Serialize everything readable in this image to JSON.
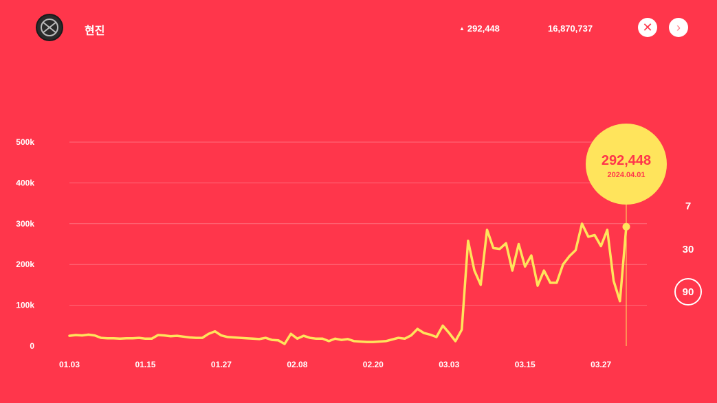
{
  "header": {
    "artist_name": "현진",
    "daily_value": "292,448",
    "total_value": "16,870,737",
    "up_icon": "triangle-up-icon",
    "close_icon": "close-icon",
    "next_icon": "chevron-right-icon"
  },
  "range_options": [
    {
      "label": "7",
      "selected": false
    },
    {
      "label": "30",
      "selected": false
    },
    {
      "label": "90",
      "selected": true
    }
  ],
  "colors": {
    "background": "#ff364b",
    "line": "#ffe45c",
    "bubble": "#ffe45c",
    "accent_text": "#ff364b"
  },
  "chart_data": {
    "type": "line",
    "x_ticks": [
      "01.03",
      "01.15",
      "01.27",
      "02.08",
      "02.20",
      "03.03",
      "03.15",
      "03.27"
    ],
    "y_ticks": [
      "0",
      "100k",
      "200k",
      "300k",
      "400k",
      "500k"
    ],
    "ylim": [
      0,
      500000
    ],
    "x_range": [
      "2024-01-03",
      "2024-04-01"
    ],
    "grid": true,
    "highlight": {
      "value": "292,448",
      "date": "2024.04.01"
    },
    "series": [
      {
        "values": [
          25000,
          27000,
          26000,
          28000,
          26000,
          20000,
          19000,
          19000,
          18000,
          19000,
          19000,
          20000,
          18000,
          18000,
          27000,
          26000,
          24000,
          25000,
          23000,
          21000,
          20000,
          20000,
          30000,
          36000,
          26000,
          22000,
          21000,
          20000,
          19000,
          18000,
          17000,
          20000,
          15000,
          14000,
          5000,
          30000,
          18000,
          25000,
          20000,
          18000,
          18000,
          12000,
          18000,
          15000,
          17000,
          12000,
          11000,
          10000,
          10000,
          11000,
          12000,
          16000,
          20000,
          18000,
          26000,
          42000,
          32000,
          28000,
          22000,
          50000,
          32000,
          12000,
          40000,
          258000,
          185000,
          150000,
          285000,
          240000,
          238000,
          252000,
          185000,
          250000,
          195000,
          222000,
          148000,
          185000,
          155000,
          155000,
          200000,
          220000,
          235000,
          300000,
          268000,
          272000,
          245000,
          285000,
          160000,
          110000,
          292448
        ]
      }
    ]
  }
}
